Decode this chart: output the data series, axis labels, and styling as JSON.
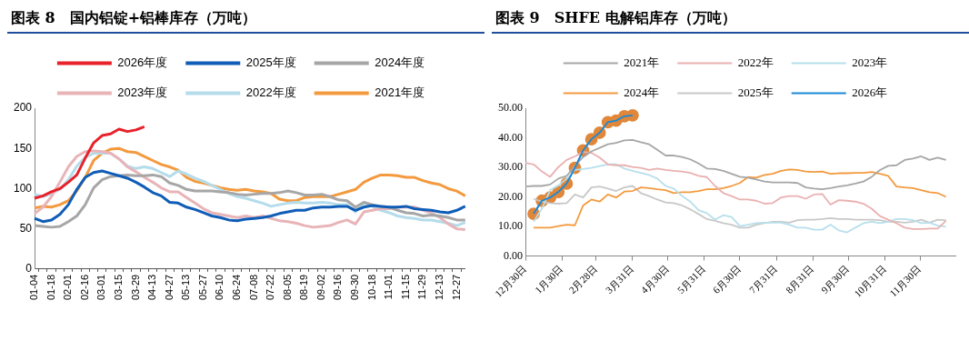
{
  "chart_data": [
    {
      "type": "line",
      "title": "图表 8　国内铝锭+铝棒库存（万吨）",
      "categories": [
        "01-04",
        null,
        "01-18",
        null,
        "02-01",
        null,
        "02-16",
        null,
        "03-01",
        null,
        "03-15",
        null,
        "03-29",
        null,
        "04-13",
        null,
        "04-27",
        null,
        "05-13",
        null,
        "05-27",
        null,
        "06-10",
        null,
        "06-24",
        null,
        "07-08",
        null,
        "07-22",
        null,
        "08-05",
        null,
        "08-19",
        null,
        "09-02",
        null,
        "09-16",
        null,
        "09-30",
        null,
        "10-18",
        null,
        "11-01",
        null,
        "11-15",
        null,
        "11-29",
        null,
        "12-13",
        null,
        "12-27",
        null
      ],
      "ylim": [
        0,
        200
      ],
      "yticks": [
        0,
        50,
        100,
        150,
        200
      ],
      "legend": "top",
      "marker": "none",
      "series": [
        {
          "name": "2026年度",
          "color": "#e8212a",
          "values": [
            88,
            91,
            96,
            100,
            108,
            117,
            138,
            157,
            166,
            168,
            174,
            171,
            173,
            177,
            null,
            null,
            null,
            null,
            null,
            null,
            null,
            null,
            null,
            null,
            null,
            null,
            null,
            null,
            null,
            null,
            null,
            null,
            null,
            null,
            null,
            null,
            null,
            null,
            null,
            null,
            null,
            null,
            null,
            null,
            null,
            null,
            null,
            null,
            null,
            null,
            null,
            null
          ]
        },
        {
          "name": "2025年度",
          "color": "#0f5db7",
          "values": [
            63,
            59,
            61,
            68,
            80,
            99,
            114,
            120,
            122,
            119,
            116,
            113,
            108,
            102,
            95,
            91,
            83,
            82,
            77,
            74,
            70,
            66,
            64,
            61,
            60,
            62,
            63,
            64,
            66,
            69,
            71,
            73,
            73,
            76,
            77,
            77,
            78,
            78,
            73,
            77,
            79,
            78,
            77,
            77,
            78,
            75,
            74,
            73,
            71,
            70,
            73,
            78
          ]
        },
        {
          "name": "2024年度",
          "color": "#a6a6a6",
          "values": [
            54,
            53,
            52,
            53,
            59,
            66,
            80,
            101,
            111,
            115,
            116,
            117,
            116,
            116,
            117,
            115,
            107,
            104,
            99,
            97,
            97,
            97,
            96,
            95,
            93,
            92,
            93,
            94,
            94,
            95,
            97,
            95,
            92,
            92,
            93,
            90,
            86,
            85,
            77,
            83,
            80,
            78,
            77,
            73,
            70,
            69,
            66,
            67,
            66,
            64,
            61,
            61
          ]
        },
        {
          "name": "2023年度",
          "color": "#e8b4b8",
          "values": [
            69,
            77,
            90,
            108,
            127,
            140,
            146,
            147,
            146,
            144,
            137,
            127,
            121,
            114,
            108,
            101,
            96,
            96,
            89,
            82,
            75,
            70,
            68,
            66,
            64,
            66,
            64,
            66,
            63,
            60,
            59,
            57,
            54,
            52,
            53,
            54,
            58,
            61,
            56,
            71,
            73,
            75,
            75,
            77,
            77,
            77,
            73,
            70,
            64,
            56,
            50,
            49
          ]
        },
        {
          "name": "2022年度",
          "color": "#b4dcea",
          "values": [
            93,
            90,
            94,
            99,
            111,
            128,
            139,
            144,
            144,
            144,
            137,
            128,
            125,
            127,
            125,
            120,
            115,
            122,
            118,
            113,
            109,
            104,
            99,
            94,
            90,
            88,
            85,
            82,
            78,
            80,
            82,
            83,
            82,
            82,
            83,
            82,
            80,
            80,
            71,
            82,
            78,
            73,
            70,
            66,
            64,
            63,
            61,
            61,
            59,
            57,
            54,
            58
          ]
        },
        {
          "name": "2021年度",
          "color": "#f39a3e",
          "values": [
            76,
            78,
            77,
            80,
            85,
            97,
            114,
            135,
            144,
            149,
            150,
            146,
            145,
            140,
            135,
            130,
            127,
            123,
            114,
            109,
            107,
            104,
            101,
            99,
            98,
            99,
            97,
            96,
            94,
            87,
            85,
            85,
            89,
            90,
            90,
            90,
            93,
            96,
            99,
            108,
            113,
            117,
            117,
            116,
            114,
            114,
            110,
            107,
            105,
            100,
            97,
            91
          ]
        }
      ]
    },
    {
      "type": "line",
      "title": "图表 9　SHFE 电解铝库存（万吨）",
      "x": [
        "2025-12-30",
        "2026-01-06",
        "2026-01-13",
        "2026-01-20",
        "2026-01-27",
        "2026-02-03",
        "2026-02-10",
        "2026-02-17",
        "2026-02-24",
        "2026-03-03",
        "2026-03-10",
        "2026-03-17",
        "2026-03-24",
        "2026-03-31",
        "2026-04-07",
        "2026-04-14",
        "2026-04-21",
        "2026-04-28",
        "2026-05-05",
        "2026-05-12",
        "2026-05-19",
        "2026-05-26",
        "2026-06-02",
        "2026-06-09",
        "2026-06-16",
        "2026-06-23",
        "2026-06-30",
        "2026-07-07",
        "2026-07-14",
        "2026-07-21",
        "2026-07-28",
        "2026-08-04",
        "2026-08-11",
        "2026-08-18",
        "2026-08-25",
        "2026-09-01",
        "2026-09-08",
        "2026-09-15",
        "2026-09-22",
        "2026-09-29",
        "2026-10-06",
        "2026-10-13",
        "2026-10-20",
        "2026-10-27",
        "2026-11-03",
        "2026-11-10",
        "2026-11-17",
        "2026-11-24",
        "2026-12-01",
        "2026-12-08",
        "2026-12-15",
        "2026-12-22"
      ],
      "xlim": [
        "2025-12-30",
        "2026-12-30"
      ],
      "xticks": [
        {
          "value": "2025-12-30",
          "label": "12月30日"
        },
        {
          "value": "2026-01-30",
          "label": "1月30日"
        },
        {
          "value": "2026-02-28",
          "label": "2月28日"
        },
        {
          "value": "2026-03-31",
          "label": "3月31日"
        },
        {
          "value": "2026-04-30",
          "label": "4月30日"
        },
        {
          "value": "2026-05-31",
          "label": "5月31日"
        },
        {
          "value": "2026-06-30",
          "label": "6月30日"
        },
        {
          "value": "2026-07-31",
          "label": "7月31日"
        },
        {
          "value": "2026-08-31",
          "label": "8月31日"
        },
        {
          "value": "2026-09-30",
          "label": "9月30日"
        },
        {
          "value": "2026-10-31",
          "label": "10月31日"
        },
        {
          "value": "2026-11-30",
          "label": "11月30日"
        }
      ],
      "ylim": [
        0,
        50
      ],
      "yticks": [
        {
          "value": 0,
          "label": "0.00"
        },
        {
          "value": 10,
          "label": "10.00"
        },
        {
          "value": 20,
          "label": "20.00"
        },
        {
          "value": 30,
          "label": "30.00"
        },
        {
          "value": 40,
          "label": "40.00"
        },
        {
          "value": 50,
          "label": "50.00"
        }
      ],
      "legend": "top",
      "series": [
        {
          "name": "2021年",
          "color": "#a6a6a6",
          "marker": "none",
          "values": [
            23.5,
            23.7,
            23.7,
            24.2,
            26.2,
            27.1,
            30.5,
            33.5,
            35.4,
            36.6,
            37.8,
            38.3,
            39.1,
            39.3,
            38.5,
            37.8,
            35.9,
            34.0,
            34.0,
            33.5,
            32.7,
            31.3,
            29.6,
            29.4,
            28.8,
            27.8,
            26.8,
            26.5,
            25.9,
            25.2,
            24.9,
            24.9,
            24.9,
            24.7,
            23.2,
            22.8,
            22.6,
            23.0,
            23.5,
            23.9,
            24.5,
            25.2,
            26.8,
            29.1,
            30.5,
            30.7,
            32.5,
            33.0,
            33.7,
            32.5,
            33.3,
            32.5
          ]
        },
        {
          "name": "2022年",
          "color": "#eab0b0",
          "marker": "none",
          "values": [
            31.5,
            31.0,
            28.6,
            26.8,
            30.1,
            32.5,
            33.7,
            35.2,
            34.9,
            33.3,
            31.0,
            30.7,
            30.7,
            30.1,
            29.8,
            29.1,
            29.6,
            29.1,
            28.8,
            28.6,
            28.1,
            27.1,
            26.7,
            23.7,
            21.3,
            20.3,
            19.1,
            19.1,
            18.7,
            17.7,
            17.9,
            19.8,
            20.3,
            20.3,
            19.4,
            20.8,
            21.0,
            17.4,
            18.9,
            18.7,
            18.4,
            17.7,
            16.0,
            13.5,
            12.3,
            11.1,
            9.6,
            9.1,
            9.1,
            9.3,
            9.3,
            11.9
          ]
        },
        {
          "name": "2023年",
          "color": "#b7dfec",
          "marker": "none",
          "values": [
            null,
            11.6,
            16.0,
            22.3,
            23.9,
            26.2,
            29.1,
            29.4,
            29.8,
            30.4,
            31.0,
            31.0,
            29.6,
            28.8,
            28.1,
            27.4,
            26.2,
            23.7,
            22.8,
            20.3,
            18.4,
            15.5,
            14.5,
            12.3,
            13.8,
            13.2,
            10.1,
            10.6,
            11.1,
            11.3,
            11.3,
            11.3,
            10.6,
            9.6,
            9.6,
            8.9,
            8.9,
            10.6,
            8.7,
            8.0,
            9.6,
            11.1,
            11.6,
            11.1,
            11.6,
            12.5,
            12.5,
            12.1,
            11.1,
            11.3,
            10.3,
            9.9
          ]
        },
        {
          "name": "2024年",
          "color": "#f39a3e",
          "marker": "none",
          "values": [
            null,
            9.6,
            9.6,
            9.6,
            10.1,
            10.6,
            10.4,
            17.1,
            19.1,
            18.4,
            20.8,
            19.8,
            21.8,
            22.0,
            23.2,
            23.0,
            22.6,
            22.3,
            21.3,
            21.6,
            21.6,
            22.0,
            22.6,
            22.6,
            23.0,
            23.7,
            24.7,
            26.7,
            26.5,
            27.4,
            27.8,
            28.8,
            29.3,
            29.1,
            28.6,
            28.4,
            28.6,
            27.8,
            28.0,
            28.0,
            28.1,
            28.1,
            28.4,
            27.8,
            27.1,
            23.5,
            23.2,
            23.0,
            22.3,
            21.6,
            21.3,
            20.0
          ]
        },
        {
          "name": "2025年",
          "color": "#c8c8c8",
          "marker": "none",
          "values": [
            null,
            19.4,
            18.4,
            17.9,
            17.7,
            17.9,
            20.8,
            19.8,
            23.2,
            23.5,
            22.8,
            22.0,
            23.2,
            23.7,
            21.3,
            20.3,
            19.1,
            18.1,
            17.9,
            17.1,
            15.8,
            14.2,
            12.5,
            11.9,
            11.1,
            10.6,
            9.6,
            9.6,
            10.6,
            11.1,
            11.6,
            11.6,
            11.3,
            12.1,
            12.3,
            12.3,
            12.5,
            12.8,
            12.5,
            12.5,
            12.3,
            12.3,
            12.3,
            12.1,
            11.6,
            11.6,
            11.3,
            11.6,
            12.3,
            11.3,
            12.3,
            12.1
          ]
        },
        {
          "name": "2026年",
          "color": "#1a88d6",
          "marker": "circle",
          "colors": [
            "#e0873a",
            "#e0873a",
            "#e0873a",
            "#e0873a",
            "#e0873a",
            "#e0873a",
            "#e0873a",
            "#e0873a",
            "#e0873a",
            "#e0873a",
            "#e0873a",
            "#e0873a",
            "#e0873a",
            "#e0873a",
            "#e0873a",
            "#e0873a",
            "#e0873a",
            "#e0873a",
            "#e0873a",
            "#e0873a",
            "#e0873a",
            "#e0873a",
            "#e0873a",
            "#e0873a",
            "#e0873a",
            "#e0873a",
            "#e0873a",
            "#e0873a",
            "#e0873a",
            "#e0873a",
            "#e0873a",
            "#e0873a",
            "#e0873a",
            "#e0873a",
            "#e0873a",
            "#e0873a",
            "#e0873a",
            "#e0873a",
            "#e0873a",
            "#e0873a",
            "#e0873a",
            "#e0873a",
            "#e0873a",
            "#e0873a",
            "#e0873a",
            "#e0873a",
            "#e0873a",
            "#e0873a",
            "#e0873a",
            "#e0873a",
            "#e0873a",
            "#e0873a"
          ],
          "values": [
            null,
            14.3,
            18.7,
            19.8,
            21.7,
            24.5,
            29.8,
            35.7,
            39.5,
            41.7,
            45.3,
            45.8,
            47.3,
            47.6,
            null,
            null,
            null,
            null,
            null,
            null,
            null,
            null,
            null,
            null,
            null,
            null,
            null,
            null,
            null,
            null,
            null,
            null,
            null,
            null,
            null,
            null,
            null,
            null,
            null,
            null,
            null,
            null,
            null,
            null,
            null,
            null,
            null,
            null,
            null,
            null,
            null,
            null
          ]
        }
      ]
    }
  ]
}
